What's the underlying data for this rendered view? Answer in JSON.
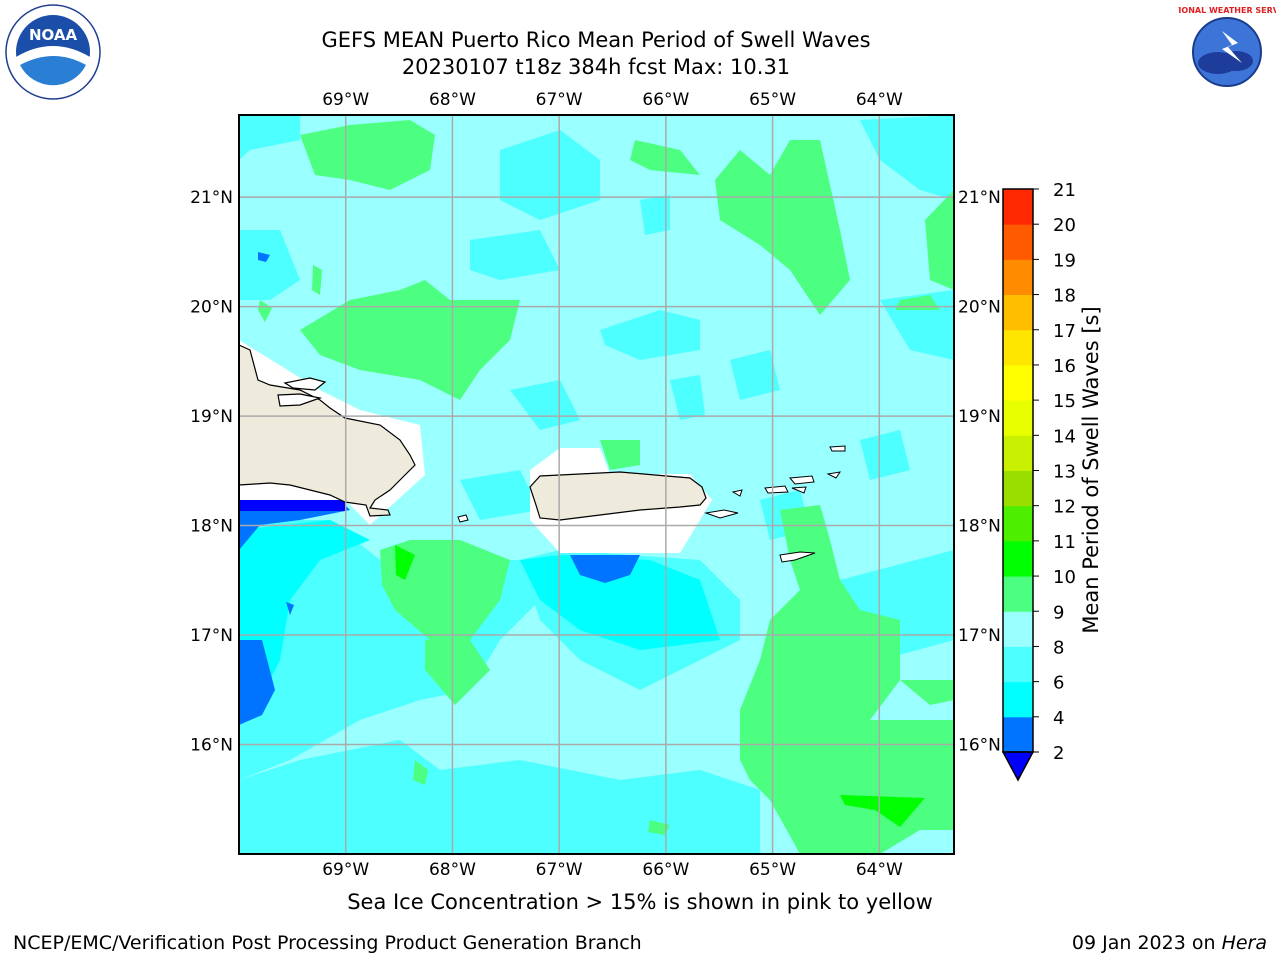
{
  "title": {
    "line1": "GEFS MEAN Puerto Rico Mean Period of Swell Waves",
    "line2": "20230107 t18z 384h fcst   Max: 10.31"
  },
  "caption": "Sea Ice Concentration > 15% is shown in pink to yellow",
  "footer": {
    "left": "NCEP/EMC/Verification Post Processing Product Generation Branch",
    "date": "09 Jan 2023 on ",
    "machine": "Hera"
  },
  "logos": {
    "left": {
      "text": "NOAA",
      "icon": "noaa-logo"
    },
    "right": {
      "text": "NATIONAL WEATHER SERVICE",
      "icon": "nws-logo"
    }
  },
  "map": {
    "lon_labels": [
      "69°W",
      "68°W",
      "67°W",
      "66°W",
      "65°W",
      "64°W"
    ],
    "lat_labels": [
      "21°N",
      "20°N",
      "19°N",
      "18°N",
      "17°N",
      "16°N"
    ],
    "extent": {
      "lon": [
        -70.0,
        -63.3
      ],
      "lat": [
        15.0,
        21.75
      ]
    },
    "land_color": "#efebdc"
  },
  "colorbar": {
    "label": "Mean Period of Swell Waves [s]",
    "ticks": [
      "2",
      "4",
      "6",
      "8",
      "9",
      "10",
      "11",
      "12",
      "13",
      "14",
      "15",
      "16",
      "17",
      "18",
      "19",
      "20",
      "21"
    ],
    "under_color": "#0000ff",
    "colors": [
      "#0073ff",
      "#00ffff",
      "#4dffff",
      "#99ffff",
      "#4dff80",
      "#00ff00",
      "#4dee00",
      "#9ade00",
      "#c8f000",
      "#e8ff00",
      "#ffff00",
      "#ffe600",
      "#ffbe00",
      "#ff8c00",
      "#ff5a00",
      "#ff2800"
    ]
  }
}
